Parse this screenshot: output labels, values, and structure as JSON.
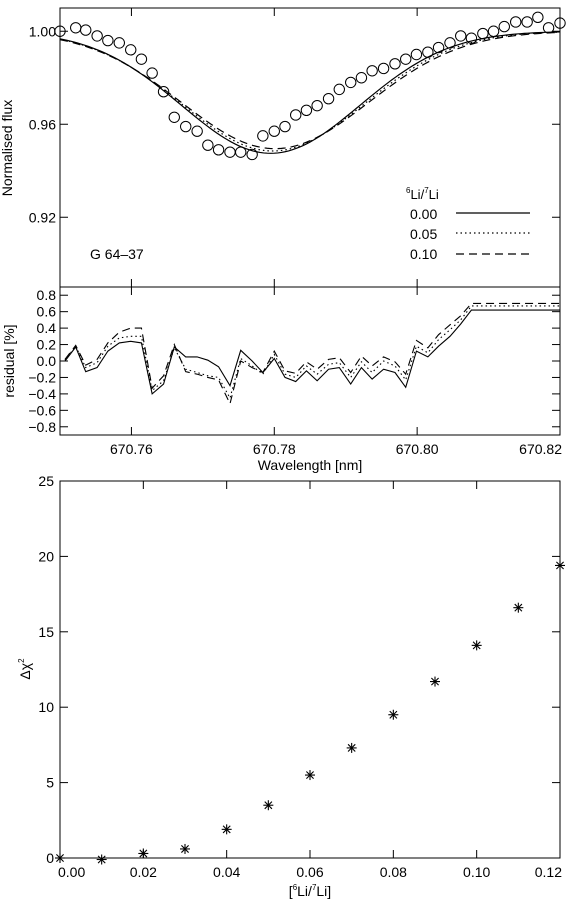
{
  "chart_data": [
    {
      "type": "line",
      "annotation": "G 64–37",
      "ylabel": "Normalised flux",
      "xlim": [
        670.75,
        670.82
      ],
      "ylim": [
        0.89,
        1.01
      ],
      "yticks": [
        0.92,
        0.96,
        1.0
      ],
      "ytick_labels": [
        "0.92",
        "0.96",
        "1.00"
      ],
      "xticks": [
        670.76,
        670.78,
        670.8,
        670.82
      ],
      "legend": {
        "position": "bottom-right",
        "title_super": "6",
        "title_mid": "Li/",
        "title_super2": "7",
        "title_end": "Li"
      },
      "observed": {
        "marker": "open-circle",
        "x": [
          670.75,
          670.7522,
          670.7536,
          670.7552,
          670.7567,
          670.7583,
          670.7599,
          670.7614,
          670.7629,
          670.7645,
          670.766,
          670.7676,
          670.7692,
          670.7707,
          670.7722,
          670.7738,
          670.7753,
          670.7769,
          670.7784,
          670.78,
          670.7815,
          670.783,
          670.7845,
          670.786,
          670.7876,
          670.7891,
          670.7907,
          670.7922,
          670.7937,
          670.7953,
          670.7969,
          670.7984,
          670.7999,
          670.8015,
          670.803,
          670.8046,
          670.8061,
          670.8076,
          670.8092,
          670.8107,
          670.8122,
          670.8138,
          670.8154,
          670.8169,
          670.8184,
          670.82
        ],
        "y": [
          1.0,
          1.0015,
          1.0005,
          0.998,
          0.996,
          0.995,
          0.992,
          0.988,
          0.982,
          0.974,
          0.963,
          0.959,
          0.957,
          0.951,
          0.949,
          0.948,
          0.948,
          0.947,
          0.955,
          0.957,
          0.959,
          0.964,
          0.966,
          0.968,
          0.971,
          0.975,
          0.978,
          0.98,
          0.983,
          0.984,
          0.986,
          0.988,
          0.99,
          0.991,
          0.993,
          0.995,
          0.998,
          0.997,
          0.999,
          1.0,
          1.002,
          1.004,
          1.004,
          1.006,
          1.0015,
          1.0035
        ]
      },
      "series": [
        {
          "name": "0.00",
          "style": "solid",
          "depth": 0.0525,
          "center": 670.7795,
          "sigma": 0.0125,
          "shift": 0.0
        },
        {
          "name": "0.05",
          "style": "dotted",
          "depth": 0.0515,
          "center": 670.7795,
          "sigma": 0.0128,
          "shift": 0.0003
        },
        {
          "name": "0.10",
          "style": "dashed",
          "depth": 0.0505,
          "center": 670.7795,
          "sigma": 0.0131,
          "shift": 0.0006
        }
      ]
    },
    {
      "type": "line",
      "xlabel": "Wavelength [nm]",
      "ylabel": "residual [%]",
      "xlim": [
        670.75,
        670.82
      ],
      "ylim": [
        -0.9,
        0.9
      ],
      "yticks": [
        0.8,
        0.6,
        0.4,
        0.2,
        0.0,
        -0.2,
        -0.4,
        -0.6,
        -0.8
      ],
      "ytick_labels": [
        "0.8",
        "0.6",
        "0.4",
        "0.2",
        "0.0",
        "−0.2",
        "−0.4",
        "−0.6",
        "−0.8"
      ],
      "xticks": [
        670.76,
        670.78,
        670.8,
        670.82
      ],
      "xtick_labels": [
        "670.76",
        "670.78",
        "670.80",
        "670.82"
      ],
      "x": [
        670.7507,
        670.7522,
        670.7536,
        670.7552,
        670.7567,
        670.7583,
        670.7599,
        670.7614,
        670.7629,
        670.7645,
        670.766,
        670.7676,
        670.7692,
        670.7707,
        670.7722,
        670.7738,
        670.7753,
        670.7769,
        670.7784,
        670.78,
        670.7815,
        670.783,
        670.7845,
        670.786,
        670.7876,
        670.7891,
        670.7907,
        670.7922,
        670.7937,
        670.7953,
        670.7969,
        670.7984,
        670.7999,
        670.8015,
        670.803,
        670.8046,
        670.8061,
        670.8076,
        670.8092,
        670.8107,
        670.8122,
        670.8138,
        670.8154,
        670.8169,
        670.8184,
        670.82
      ],
      "series": [
        {
          "name": "0.00",
          "style": "solid",
          "values": [
            0.0,
            0.17,
            -0.13,
            -0.08,
            0.12,
            0.22,
            0.24,
            0.22,
            -0.4,
            -0.28,
            0.17,
            0.05,
            0.05,
            0.01,
            -0.07,
            -0.3,
            0.13,
            0.0,
            -0.14,
            0.03,
            -0.2,
            -0.25,
            -0.12,
            -0.24,
            -0.1,
            -0.08,
            -0.28,
            -0.08,
            -0.22,
            -0.1,
            -0.14,
            -0.32,
            0.12,
            0.05,
            0.18,
            0.3,
            0.45,
            0.62,
            0.62,
            0.62,
            0.62,
            0.62,
            0.62,
            0.62,
            0.62,
            0.62
          ]
        },
        {
          "name": "0.05",
          "style": "dotted",
          "values": [
            0.01,
            0.18,
            -0.08,
            -0.02,
            0.18,
            0.28,
            0.3,
            0.3,
            -0.36,
            -0.24,
            0.16,
            -0.1,
            -0.14,
            -0.18,
            -0.2,
            -0.45,
            0.03,
            -0.06,
            -0.16,
            0.08,
            -0.16,
            -0.2,
            -0.06,
            -0.16,
            -0.04,
            -0.02,
            -0.2,
            -0.01,
            -0.14,
            0.0,
            -0.06,
            -0.23,
            0.18,
            0.1,
            0.26,
            0.38,
            0.5,
            0.67,
            0.67,
            0.67,
            0.67,
            0.67,
            0.67,
            0.67,
            0.67,
            0.67
          ]
        },
        {
          "name": "0.10",
          "style": "dashed",
          "values": [
            0.02,
            0.19,
            -0.05,
            0.02,
            0.22,
            0.35,
            0.4,
            0.4,
            -0.33,
            -0.18,
            0.2,
            -0.13,
            -0.16,
            -0.2,
            -0.23,
            -0.52,
            0.0,
            -0.08,
            -0.14,
            0.12,
            -0.12,
            -0.15,
            -0.01,
            -0.1,
            0.02,
            0.04,
            -0.14,
            0.06,
            -0.06,
            0.05,
            -0.01,
            -0.16,
            0.25,
            0.16,
            0.32,
            0.44,
            0.55,
            0.7,
            0.7,
            0.7,
            0.7,
            0.7,
            0.7,
            0.7,
            0.7,
            0.7
          ]
        }
      ]
    },
    {
      "type": "scatter",
      "marker": "asterisk",
      "xlabel_pre": "[",
      "xlabel_sup1": "6",
      "xlabel_mid": "Li/",
      "xlabel_sup2": "7",
      "xlabel_end": "Li]",
      "ylabel_main": "Δχ",
      "ylabel_sup": "2",
      "xlim": [
        0.0,
        0.12
      ],
      "ylim": [
        0,
        25
      ],
      "xticks": [
        0.0,
        0.02,
        0.04,
        0.06,
        0.08,
        0.1,
        0.12
      ],
      "xtick_labels": [
        "0.00",
        "0.02",
        "0.04",
        "0.06",
        "0.08",
        "0.10",
        "0.12"
      ],
      "yticks": [
        0,
        5,
        10,
        15,
        20,
        25
      ],
      "ytick_labels": [
        "0",
        "5",
        "10",
        "15",
        "20",
        "25"
      ],
      "x": [
        0.0,
        0.01,
        0.02,
        0.03,
        0.04,
        0.05,
        0.06,
        0.07,
        0.08,
        0.09,
        0.1,
        0.11,
        0.12
      ],
      "y": [
        0.0,
        -0.1,
        0.3,
        0.6,
        1.9,
        3.5,
        5.5,
        7.3,
        9.5,
        11.7,
        14.1,
        16.6,
        19.4
      ]
    }
  ]
}
